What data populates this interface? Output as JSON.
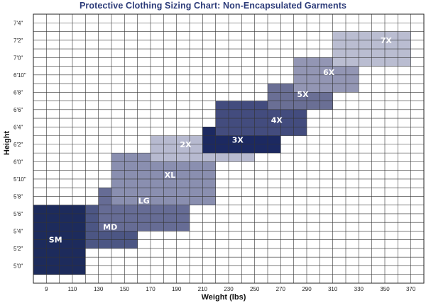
{
  "chart_data": {
    "type": "heatmap",
    "title": "Protective Clothing Sizing Chart: Non-Encapsulated Garments",
    "xlabel": "Weight (lbs)",
    "ylabel": "Height",
    "x_ticks": [
      "9",
      "110",
      "130",
      "150",
      "170",
      "190",
      "210",
      "230",
      "250",
      "270",
      "290",
      "310",
      "330",
      "350",
      "370"
    ],
    "y_ticks": [
      "5'0\"",
      "5'2\"",
      "5'4\"",
      "5'6\"",
      "5'8\"",
      "5'10\"",
      "6'0\"",
      "6'2\"",
      "6'4\"",
      "6'6\"",
      "6'8\"",
      "6'10\"",
      "7'0\"",
      "7'2\"",
      "7'4\""
    ],
    "y_ticks_inches": [
      60,
      62,
      64,
      66,
      68,
      70,
      72,
      74,
      76,
      78,
      80,
      82,
      84,
      86,
      88
    ],
    "grid": true,
    "sizes": [
      {
        "label": "SM",
        "weight_min": 90,
        "weight_max": 130,
        "height_min_in": 59,
        "height_max_in": 67,
        "color": "#1d2b5c",
        "text_color": "#ffffff"
      },
      {
        "label": "MD",
        "weight_min": 130,
        "weight_max": 170,
        "height_min_in": 62,
        "height_max_in": 67,
        "color": "#4c5684",
        "text_color": "#ffffff"
      },
      {
        "label": "LG",
        "weight_min": 140,
        "weight_max": 210,
        "height_min_in": 64,
        "height_max_in": 69,
        "color": "#666c95",
        "text_color": "#ffffff"
      },
      {
        "label": "XL",
        "weight_min": 150,
        "weight_max": 230,
        "height_min_in": 67,
        "height_max_in": 73,
        "color": "#8a8fb0",
        "text_color": "#ffffff"
      },
      {
        "label": "2X",
        "weight_min": 180,
        "weight_max": 260,
        "height_min_in": 72,
        "height_max_in": 75,
        "color": "#b7bad0",
        "text_color": "#ffffff"
      },
      {
        "label": "3X",
        "weight_min": 220,
        "weight_max": 280,
        "height_min_in": 73,
        "height_max_in": 76,
        "color": "#1c2961",
        "text_color": "#ffffff"
      },
      {
        "label": "4X",
        "weight_min": 230,
        "weight_max": 300,
        "height_min_in": 75,
        "height_max_in": 79,
        "color": "#434c7e",
        "text_color": "#ffffff"
      },
      {
        "label": "5X",
        "weight_min": 270,
        "weight_max": 320,
        "height_min_in": 78,
        "height_max_in": 81,
        "color": "#6a6f95",
        "text_color": "#ffffff"
      },
      {
        "label": "6X",
        "weight_min": 290,
        "weight_max": 340,
        "height_min_in": 80,
        "height_max_in": 84,
        "color": "#9396b4",
        "text_color": "#ffffff"
      },
      {
        "label": "7X",
        "weight_min": 320,
        "weight_max": 380,
        "height_min_in": 83,
        "height_max_in": 87,
        "color": "#babdd1",
        "text_color": "#ffffff"
      }
    ]
  }
}
